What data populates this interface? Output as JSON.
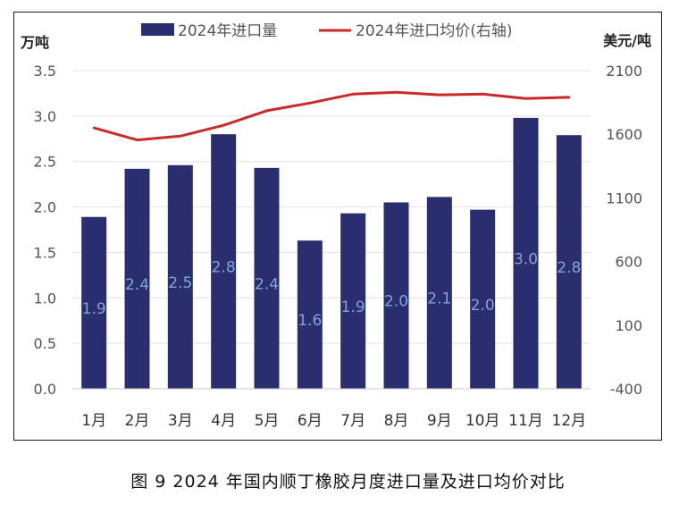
{
  "chart_data": {
    "type": "bar",
    "categories": [
      "1月",
      "2月",
      "3月",
      "4月",
      "5月",
      "6月",
      "7月",
      "8月",
      "9月",
      "10月",
      "11月",
      "12月"
    ],
    "series": [
      {
        "name": "2024年进口量",
        "kind": "bar",
        "axis": "left",
        "values": [
          1.89,
          2.42,
          2.46,
          2.8,
          2.43,
          1.63,
          1.93,
          2.05,
          2.11,
          1.97,
          2.98,
          2.79
        ],
        "data_labels": [
          "1.9",
          "2.4",
          "2.5",
          "2.8",
          "2.4",
          "1.6",
          "1.9",
          "2.0",
          "2.1",
          "2.0",
          "3.0",
          "2.8"
        ]
      },
      {
        "name": "2024年进口均价(右轴)",
        "kind": "line",
        "axis": "right",
        "values": [
          1650,
          1555,
          1585,
          1670,
          1785,
          1845,
          1915,
          1930,
          1910,
          1915,
          1880,
          1890
        ]
      }
    ],
    "left_axis": {
      "unit_label": "万吨",
      "ylim": [
        0,
        3.5
      ],
      "ticks": [
        "0.0",
        "0.5",
        "1.0",
        "1.5",
        "2.0",
        "2.5",
        "3.0",
        "3.5"
      ]
    },
    "right_axis": {
      "unit_label": "美元/吨",
      "ylim": [
        -400,
        2100
      ],
      "ticks": [
        "-400",
        "100",
        "600",
        "1100",
        "1600",
        "2100"
      ]
    },
    "legend_position": "top",
    "grid": "horizontal",
    "colors": {
      "bar": "#2b2e6e",
      "line": "#cc2a2a",
      "grid": "#e2e2e2",
      "axis_text": "#555555",
      "label_text": "#7fa6d8"
    }
  },
  "caption": "图 9  2024 年国内顺丁橡胶月度进口量及进口均价对比"
}
